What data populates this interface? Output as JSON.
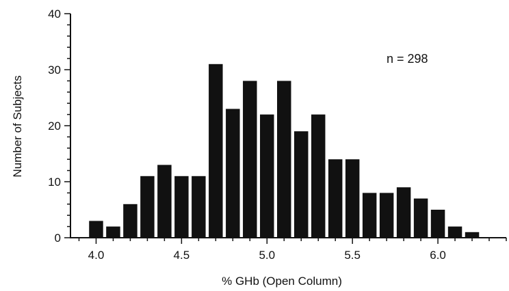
{
  "chart_data": {
    "type": "bar",
    "title": "",
    "xlabel": "% GHb  (Open Column)",
    "ylabel": "Number of Subjects",
    "annotation": "n = 298",
    "bin_width": 0.1,
    "x": [
      4.0,
      4.1,
      4.2,
      4.3,
      4.4,
      4.5,
      4.6,
      4.7,
      4.8,
      4.9,
      5.0,
      5.1,
      5.2,
      5.3,
      5.4,
      5.5,
      5.6,
      5.7,
      5.8,
      5.9,
      6.0,
      6.1,
      6.2
    ],
    "values": [
      3,
      2,
      6,
      11,
      13,
      11,
      11,
      31,
      23,
      28,
      22,
      28,
      19,
      22,
      14,
      14,
      8,
      8,
      9,
      7,
      5,
      2,
      1
    ],
    "xlim": [
      3.85,
      6.4
    ],
    "ylim": [
      0,
      40
    ],
    "x_ticks": [
      4.0,
      4.5,
      5.0,
      5.5,
      6.0
    ],
    "x_tick_labels": [
      "4.0",
      "4.5",
      "5.0",
      "5.5",
      "6.0"
    ],
    "y_ticks": [
      0,
      10,
      20,
      30,
      40
    ],
    "y_tick_labels": [
      "0",
      "10",
      "20",
      "30",
      "40"
    ],
    "grid": false,
    "legend": "none",
    "colors": {
      "bar": "#111111",
      "axis": "#111111"
    }
  }
}
